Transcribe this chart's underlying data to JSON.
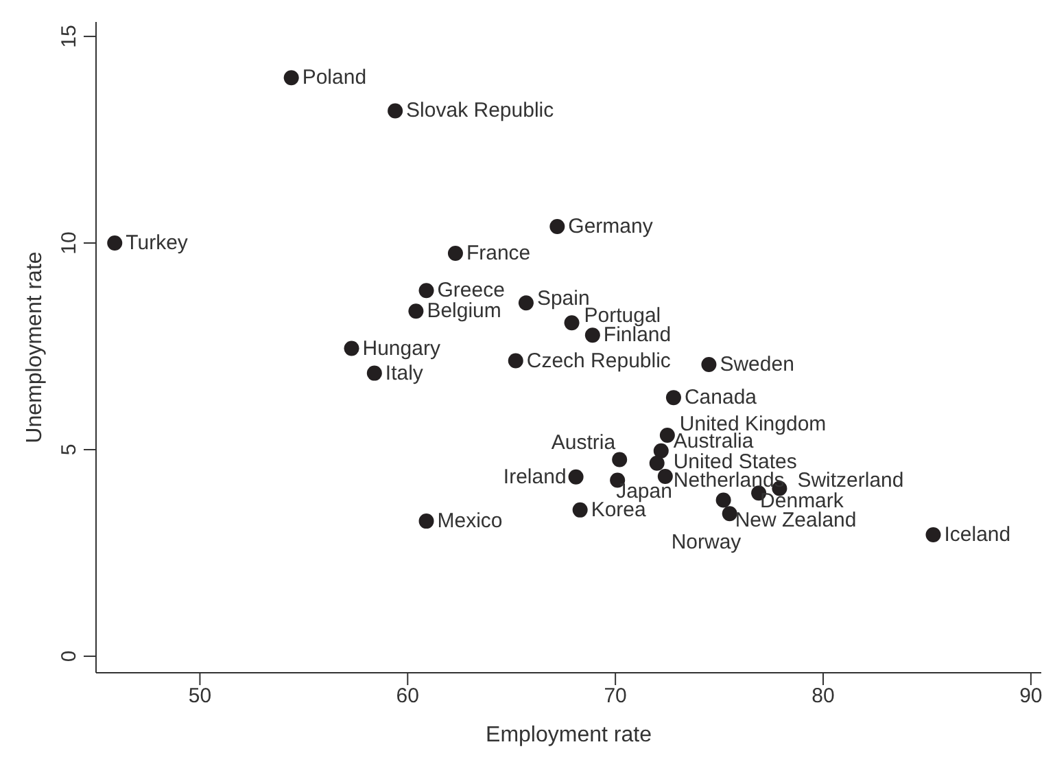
{
  "chart_data": {
    "type": "scatter",
    "xlabel": "Employment rate",
    "ylabel": "Unemployment rate",
    "xlim": [
      45,
      90.5
    ],
    "xticks": [
      50,
      60,
      70,
      80,
      90
    ],
    "ylim": [
      -0.4,
      15.35
    ],
    "yticks": [
      0,
      5,
      10,
      15
    ],
    "grid": false,
    "legend": false,
    "marker": "circle",
    "series": [
      {
        "color": "#231f20",
        "x": [
          54.4,
          59.4,
          45.9,
          67.2,
          62.3,
          60.9,
          65.7,
          60.4,
          67.9,
          68.9,
          57.3,
          65.2,
          74.5,
          58.4,
          72.8,
          72.5,
          72.2,
          70.2,
          72.0,
          68.1,
          70.1,
          72.4,
          77.9,
          76.9,
          68.3,
          75.2,
          75.5,
          60.9,
          85.3
        ],
        "values": [
          14.0,
          13.2,
          10.0,
          10.4,
          9.75,
          8.85,
          8.55,
          8.35,
          8.07,
          7.77,
          7.45,
          7.15,
          7.06,
          6.85,
          6.26,
          5.35,
          4.97,
          4.76,
          4.67,
          4.34,
          4.26,
          4.35,
          4.06,
          3.95,
          3.54,
          3.78,
          3.45,
          3.27,
          2.94
        ]
      }
    ],
    "annotations": [
      {
        "text": "Poland",
        "x": 54.4,
        "y": 14.0
      },
      {
        "text": "Slovak Republic",
        "x": 59.4,
        "y": 13.2
      },
      {
        "text": "Turkey",
        "x": 45.9,
        "y": 10.0
      },
      {
        "text": "Germany",
        "x": 67.2,
        "y": 10.4
      },
      {
        "text": "France",
        "x": 62.3,
        "y": 9.75
      },
      {
        "text": "Greece",
        "x": 60.9,
        "y": 8.85
      },
      {
        "text": "Spain",
        "x": 65.7,
        "y": 8.55
      },
      {
        "text": "Belgium",
        "x": 60.4,
        "y": 8.35
      },
      {
        "text": "Portugal",
        "x": 67.9,
        "y": 8.07
      },
      {
        "text": "Finland",
        "x": 68.9,
        "y": 7.77
      },
      {
        "text": "Hungary",
        "x": 57.3,
        "y": 7.45
      },
      {
        "text": "Czech Republic",
        "x": 65.2,
        "y": 7.15
      },
      {
        "text": "Sweden",
        "x": 74.5,
        "y": 7.06
      },
      {
        "text": "Italy",
        "x": 58.4,
        "y": 6.85
      },
      {
        "text": "Canada",
        "x": 72.8,
        "y": 6.26
      },
      {
        "text": "United Kingdom",
        "x": 72.5,
        "y": 5.35
      },
      {
        "text": "Australia",
        "x": 72.2,
        "y": 4.97
      },
      {
        "text": "Austria",
        "x": 70.2,
        "y": 4.76
      },
      {
        "text": "United States",
        "x": 72.0,
        "y": 4.67
      },
      {
        "text": "Ireland",
        "x": 68.1,
        "y": 4.34
      },
      {
        "text": "Japan",
        "x": 70.1,
        "y": 4.26
      },
      {
        "text": "Netherlands",
        "x": 72.4,
        "y": 4.35
      },
      {
        "text": "Switzerland",
        "x": 77.9,
        "y": 4.06
      },
      {
        "text": "Denmark",
        "x": 76.9,
        "y": 3.95
      },
      {
        "text": "Korea",
        "x": 68.3,
        "y": 3.54
      },
      {
        "text": "Norway",
        "x": 75.2,
        "y": 3.78
      },
      {
        "text": "New Zealand",
        "x": 75.5,
        "y": 3.45
      },
      {
        "text": "Mexico",
        "x": 60.9,
        "y": 3.27
      },
      {
        "text": "Iceland",
        "x": 85.3,
        "y": 2.94
      }
    ]
  }
}
